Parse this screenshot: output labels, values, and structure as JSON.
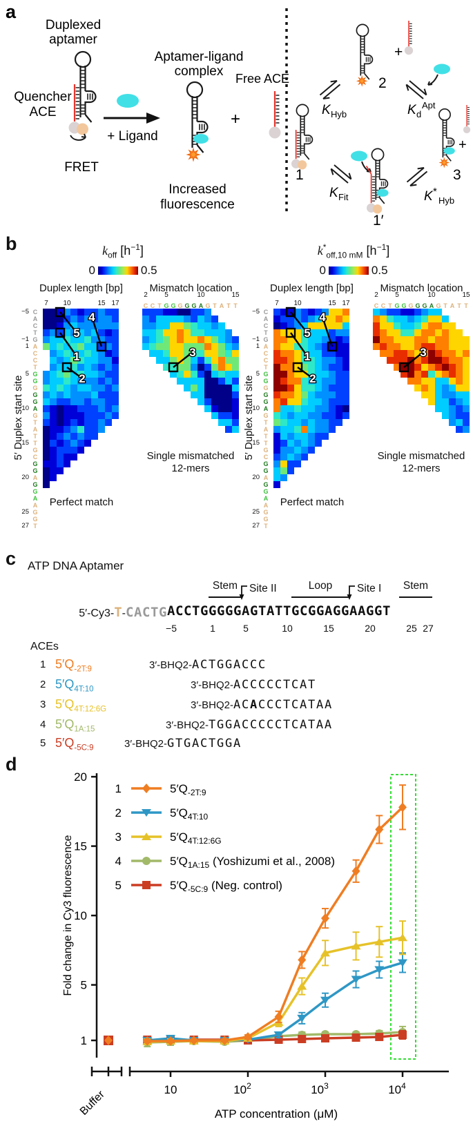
{
  "colors": {
    "jet": {
      "0": "#000089",
      "1": "#0000d9",
      "2": "#0040ff",
      "3": "#0090ff",
      "4": "#00ccff",
      "5": "#2ee8c8",
      "6": "#70e878",
      "7": "#b0e84c",
      "8": "#ffd500",
      "9": "#ff7f00",
      "a": "#e82e00",
      "b": "#8c0000"
    },
    "seq": {
      "y": "#9a9a9a",
      "t": "#ddb27c",
      "g": "#3cbf3c",
      "d": "#1e7a1e"
    },
    "ligand": "#41e0e6",
    "star": "#ff9d2e",
    "quencher": "#dbd3d3",
    "donor": "#f3c79c",
    "red_strand": "#e8342c",
    "highlight_green": "#33dd33"
  },
  "panel_a": {
    "label": "a",
    "duplexed_1": "Duplexed",
    "duplexed_2": "aptamer",
    "quencher_1": "Quencher",
    "quencher_2": "ACE",
    "fret": "FRET",
    "plus_ligand": "+ Ligand",
    "complex_1": "Aptamer-ligand",
    "complex_2": "complex",
    "free_ace": "Free ACE",
    "plus": "+",
    "increased_1": "Increased",
    "increased_2": "fluorescence",
    "state_1": "1",
    "state_2": "2",
    "state_3": "3",
    "state_1p": "1′",
    "k_hyb": {
      "k": "K",
      "sub": "Hyb"
    },
    "k_d": {
      "k": "K",
      "sub": "d",
      "sup": "Apt"
    },
    "k_fit": {
      "k": "K",
      "sub": "Fit"
    },
    "k_s_hyb": {
      "k": "K",
      "sup": "*",
      "sub": "Hyb"
    }
  },
  "panel_b": {
    "label": "b",
    "yaxis_label": "5′ Duplex start site",
    "seq": "CACTGACCTGGGGGAGTATTGCGGAGGAAGGT",
    "seq_colors": "yyyyyttttggtdddtttttttddtdggtttt",
    "row_numbers": [
      [
        "−5",
        0
      ],
      [
        "−1",
        4
      ],
      [
        "1",
        5
      ],
      [
        "5",
        9
      ],
      [
        "10",
        14
      ],
      [
        "15",
        19
      ],
      [
        "20",
        24
      ],
      [
        "25",
        29
      ],
      [
        "27",
        31
      ]
    ],
    "mm_seq": "CCTGGGGGAGTATT",
    "mm_seq_colors": "tttggtdddttttt",
    "mm_ticks": [
      [
        "2",
        0
      ],
      [
        "5",
        3
      ],
      [
        "10",
        8
      ],
      [
        "15",
        13
      ]
    ],
    "pm_ticks": [
      [
        "7",
        0
      ],
      [
        "10",
        3
      ],
      [
        "15",
        8
      ],
      [
        "17",
        10
      ]
    ],
    "groups": [
      {
        "k": "k",
        "star": "",
        "sub": "off",
        "unit_pre": " [h",
        "unit_sup": "−1",
        "unit_post": "]",
        "zero": "0",
        "max": "0.5",
        "pm_title": "Duplex length [bp]",
        "mm_title": "Mismatch location",
        "pm_caption": "Perfect match",
        "mm_caption_1": "Single mismatched",
        "mm_caption_2": "12-mers",
        "pm_rows": [
          "00132122322",
          "00023232332",
          "00134333333",
          "23243434212",
          "34454453322",
          "64545644232",
          ".3454454312",
          ".4346544331",
          ".3445343232",
          "34564544322",
          "34454333232",
          "54543443323",
          "34343334222",
          "43223323322",
          "21011222323",
          "31011122232",
          "2101212232",
          "011235223",
          "01232322",
          "0212321",
          "012221",
          "01211",
          "1121",
          "011",
          "01",
          "0"
        ],
        "mm_rows": [
          "2221100223....",
          "32444432432...",
          "334488654434..",
          "4458898554443.",
          "34568988986432",
          "45668866698643",
          ".4458865588658",
          "..446864258966",
          "...55663026986",
          "....4585204544",
          ".....444400242",
          "......46400004",
          ".......4400002",
          "........420001",
          ".........41001",
          "..........4221",
          "...........442",
          "............24"
        ],
        "pm_marks": [
          {
            "r": 0,
            "c": 2,
            "t": "5",
            "lr": 3.0,
            "lc": 4.4
          },
          {
            "r": 3,
            "c": 2,
            "t": "1",
            "lr": 6.4,
            "lc": 4.4
          },
          {
            "r": 5,
            "c": 8,
            "t": "4",
            "lr": 0.7,
            "lc": 6.6
          },
          {
            "r": 8,
            "c": 3,
            "t": "2",
            "lr": 9.6,
            "lc": 5.2
          }
        ],
        "mm_marks": [
          {
            "r": 8,
            "c": 4,
            "t": "3",
            "lr": 5.8,
            "lc": 6.8
          }
        ]
      },
      {
        "k": "k",
        "star": "*",
        "sub": "off,10 mM",
        "unit_pre": " [h",
        "unit_sup": "−1",
        "unit_post": "]",
        "zero": "0",
        "max": "0.5",
        "pm_title": "Duplex length [bp]",
        "mm_title": "Mismatch location",
        "pm_caption": "Perfect match",
        "mm_caption_1": "Single mismatched",
        "mm_caption_2": "12-mers",
        "pm_rows": [
          "21132123889",
          "12232348898",
          "01234888884",
          "98885444233",
          "99885443212",
          "98855432111",
          "a9985442211",
          "aa985543321",
          "b9986543221",
          "bb988544322",
          "ba995443322",
          "bba85543222",
          "a9986433322",
          "9a885443222",
          "94454433210",
          "54344332212",
          "6544343322",
          "344594332",
          "14344322",
          "1243432",
          "133432",
          "23432",
          "3822",
          "462",
          "43",
          "1"
        ],
        "mm_rows": [
          "4322112344....",
          "98544345884...",
          "a88544589988..",
          "a988558998988.",
          "b9988899899888",
          "9a99889aa99888",
          ".99aa989ba9989",
          "..aaab9abba998",
          "...9bba89aba98",
          "....ab9a589a98",
          ".....998844898",
          "......89843488",
          ".......8843344",
          "........844234",
          ".........44323",
          "..........4322",
          "...........342",
          "............23"
        ],
        "pm_marks": [
          {
            "r": 0,
            "c": 2,
            "t": "5",
            "lr": 3.0,
            "lc": 4.4
          },
          {
            "r": 3,
            "c": 2,
            "t": "1",
            "lr": 6.4,
            "lc": 4.4
          },
          {
            "r": 5,
            "c": 8,
            "t": "4",
            "lr": 0.7,
            "lc": 6.6
          },
          {
            "r": 8,
            "c": 3,
            "t": "2",
            "lr": 9.6,
            "lc": 5.2
          }
        ],
        "mm_marks": [
          {
            "r": 8,
            "c": 4,
            "t": "3",
            "lr": 5.8,
            "lc": 6.8
          }
        ]
      }
    ]
  },
  "panel_c": {
    "label": "c",
    "title": "ATP DNA Aptamer",
    "prefix": "5′-Cy3-",
    "linker": "T",
    "dash": "-",
    "gray_seq": "CACTG",
    "core_seq": "ACCTGGGGGAGTATTGCGGAGGAAGGT",
    "pos_labels": [
      [
        "−5",
        0
      ],
      [
        "1",
        5
      ],
      [
        "5",
        9
      ],
      [
        "10",
        14
      ],
      [
        "15",
        19
      ],
      [
        "20",
        24
      ],
      [
        "25",
        29
      ],
      [
        "27",
        31
      ]
    ],
    "regions": [
      {
        "t": "Stem",
        "c0": 5,
        "c1": 8
      },
      {
        "t": "Loop",
        "c0": 15,
        "c1": 21
      },
      {
        "t": "Stem",
        "c0": 28,
        "c1": 31
      }
    ],
    "sites": [
      {
        "t": "Site II",
        "c": 9
      },
      {
        "t": "Site I",
        "c": 22
      }
    ],
    "aces_label": "ACEs",
    "aces": [
      {
        "n": "1",
        "name": "5′Q",
        "sub": "-2T:9",
        "color": "#ef7d22",
        "prefix": "3′-BHQ2-",
        "seq": "ACTGGACCC",
        "startcol": 3,
        "mm": -1
      },
      {
        "n": "2",
        "name": "5′Q",
        "sub": "4T:10",
        "color": "#2e97c5",
        "prefix": "3′-BHQ2-",
        "seq": "ACCCCCTCAT",
        "startcol": 8,
        "mm": -1
      },
      {
        "n": "3",
        "name": "5′Q",
        "sub": "4T:12:6G",
        "color": "#e6c229",
        "prefix": "3′-BHQ2-",
        "seq": "ACACCCTCATAA",
        "startcol": 8,
        "mm": 2
      },
      {
        "n": "4",
        "name": "5′Q",
        "sub": "1A:15",
        "color": "#a2b969",
        "prefix": "3′-BHQ2-",
        "seq": "TGGACCCCCTCATAA",
        "startcol": 5,
        "mm": -1
      },
      {
        "n": "5",
        "name": "5′Q",
        "sub": "-5C:9",
        "color": "#cb3d23",
        "prefix": "3′-BHQ2-",
        "seq": "GTGACTGGA",
        "startcol": 0,
        "mm": -1
      }
    ]
  },
  "chart_data": {
    "type": "line",
    "label": "d",
    "ylabel": "Fold change in Cy3 fluorescence",
    "xlabel": "ATP concentration (μM)",
    "buffer_label": "Buffer",
    "yticks": [
      1,
      5,
      10,
      15,
      20
    ],
    "ylim": [
      0.3,
      20
    ],
    "xticks": [
      {
        "v": 10,
        "base": "10",
        "sup": ""
      },
      {
        "v": 100,
        "base": "10",
        "sup": "2"
      },
      {
        "v": 1000,
        "base": "10",
        "sup": "3"
      },
      {
        "v": 10000,
        "base": "10",
        "sup": "4"
      }
    ],
    "x": [
      5,
      10,
      20,
      50,
      100,
      250,
      500,
      1000,
      2500,
      5000,
      10000
    ],
    "series": [
      {
        "n": "1",
        "name": "5′Q",
        "sub": "-2T:9",
        "extra": "",
        "marker": "diamond",
        "color": "#ef7d22",
        "values": [
          0.95,
          0.95,
          1.0,
          1.0,
          1.25,
          2.7,
          6.8,
          9.8,
          13.2,
          16.2,
          17.8
        ],
        "err": [
          0.1,
          0.1,
          0.1,
          0.1,
          0.15,
          0.4,
          0.6,
          0.7,
          0.8,
          1.0,
          1.6
        ]
      },
      {
        "n": "2",
        "name": "5′Q",
        "sub": "4T:10",
        "extra": "",
        "marker": "triangle-down",
        "color": "#2e97c5",
        "values": [
          1.0,
          1.15,
          1.0,
          1.0,
          1.05,
          1.4,
          2.6,
          3.9,
          5.4,
          6.1,
          6.6
        ],
        "err": [
          0.15,
          0.2,
          0.1,
          0.1,
          0.1,
          0.2,
          0.4,
          0.5,
          0.6,
          0.6,
          0.7
        ]
      },
      {
        "n": "3",
        "name": "5′Q",
        "sub": "4T:12:6G",
        "extra": "",
        "marker": "triangle-up",
        "color": "#e6c229",
        "values": [
          0.9,
          0.95,
          0.95,
          0.95,
          1.15,
          2.3,
          4.9,
          7.3,
          7.8,
          8.1,
          8.4
        ],
        "err": [
          0.2,
          0.15,
          0.1,
          0.1,
          0.15,
          0.3,
          0.6,
          0.9,
          1.0,
          1.1,
          1.2
        ]
      },
      {
        "n": "4",
        "name": "5′Q",
        "sub": "1A:15",
        "extra": " (Yoshizumi et al., 2008)",
        "marker": "circle",
        "color": "#a2b969",
        "values": [
          0.85,
          0.9,
          0.95,
          0.9,
          1.0,
          1.3,
          1.4,
          1.45,
          1.45,
          1.5,
          1.6
        ],
        "err": [
          0.3,
          0.25,
          0.1,
          0.15,
          0.1,
          0.15,
          0.2,
          0.15,
          0.15,
          0.2,
          0.4
        ]
      },
      {
        "n": "5",
        "name": "5′Q",
        "sub": "-5C:9",
        "extra": " (Neg. control)",
        "marker": "square",
        "color": "#cb3d23",
        "values": [
          1.05,
          1.0,
          1.05,
          1.05,
          1.0,
          1.05,
          1.1,
          1.15,
          1.2,
          1.25,
          1.4
        ],
        "err": [
          0.15,
          0.1,
          0.1,
          0.1,
          0.1,
          0.1,
          0.1,
          0.1,
          0.15,
          0.2,
          0.3
        ]
      }
    ],
    "buffer_point": {
      "value": 1.0
    },
    "legend_position": "top-left",
    "grid": false
  }
}
